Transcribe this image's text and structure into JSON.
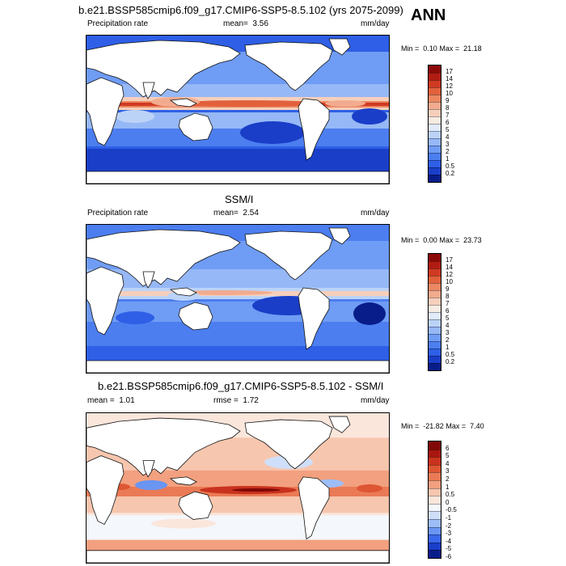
{
  "figure_label": "ANN",
  "colors": {
    "precip_scale": [
      "#081d8a",
      "#1a3ec8",
      "#2e5fe6",
      "#4c7ef0",
      "#6f9cf4",
      "#96b8f6",
      "#bcd3f8",
      "#e1ebfa",
      "#f7ece2",
      "#f6cfbb",
      "#f2ab8e",
      "#ec8762",
      "#e2603c",
      "#d03a22",
      "#b11c12",
      "#8c0a08"
    ],
    "diff_scale": [
      "#081d8a",
      "#1a3ec8",
      "#3a68ea",
      "#6a95f2",
      "#9dbdf7",
      "#cfdff9",
      "#f4f7fb",
      "#fbe6dc",
      "#f7c6ae",
      "#f2a07f",
      "#ea7a55",
      "#de5633",
      "#c9321e",
      "#a81710",
      "#800806"
    ],
    "land": "#ffffff",
    "coast": "#111111"
  },
  "panels": [
    {
      "title": "b.e21.BSSP585cmip6.f09_g17.CMIP6-SSP5-8.5.102 (yrs 2075-2099)",
      "left_label": "Precipitation rate",
      "stat_label": "mean=",
      "stat_value": "3.56",
      "units": "mm/day",
      "min_label": "Min =",
      "min_value": "0.10",
      "max_label": "Max =",
      "max_value": "21.18",
      "colorbar_levels": [
        "17",
        "14",
        "12",
        "10",
        "9",
        "8",
        "7",
        "6",
        "5",
        "4",
        "3",
        "2",
        "1",
        "0.5",
        "0.2"
      ],
      "scale": "precip"
    },
    {
      "title": "SSM/I",
      "left_label": "Precipitation rate",
      "stat_label": "mean=",
      "stat_value": "2.54",
      "units": "mm/day",
      "min_label": "Min =",
      "min_value": "0.00",
      "max_label": "Max =",
      "max_value": "23.73",
      "colorbar_levels": [
        "17",
        "14",
        "12",
        "10",
        "9",
        "8",
        "7",
        "6",
        "5",
        "4",
        "3",
        "2",
        "1",
        "0.5",
        "0.2"
      ],
      "scale": "precip"
    },
    {
      "title": "b.e21.BSSP585cmip6.f09_g17.CMIP6-SSP5-8.5.102 - SSM/I",
      "left_label": "mean =",
      "left_value": "1.01",
      "stat_label": "rmse =",
      "stat_value": "1.72",
      "units": "mm/day",
      "min_label": "Min =",
      "min_value": "-21.82",
      "max_label": "Max =",
      "max_value": "7.40",
      "colorbar_levels": [
        "6",
        "5",
        "4",
        "3",
        "2",
        "1",
        "0.5",
        "0",
        "-0.5",
        "-1",
        "-2",
        "-3",
        "-4",
        "-5",
        "-6"
      ],
      "scale": "diff"
    }
  ]
}
